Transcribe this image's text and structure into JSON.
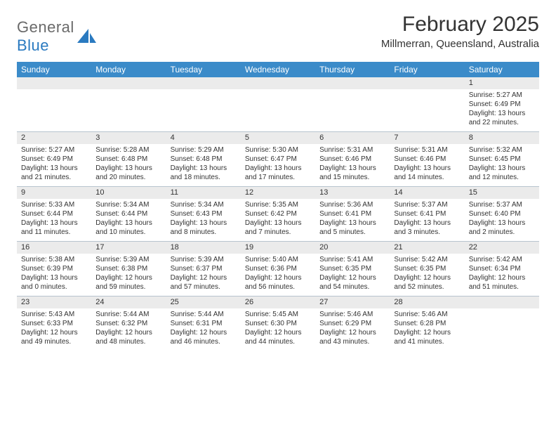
{
  "logo": {
    "word1": "General",
    "word2": "Blue"
  },
  "title": "February 2025",
  "location": "Millmerran, Queensland, Australia",
  "colors": {
    "header_bg": "#3b8bc9",
    "header_text": "#ffffff",
    "daynum_bg": "#ebebeb",
    "grid_line": "#b8c4cf",
    "logo_gray": "#6a6a6a",
    "logo_blue": "#2a7ac0",
    "text": "#333333",
    "background": "#ffffff"
  },
  "typography": {
    "title_fontsize": 30,
    "location_fontsize": 15,
    "dayheader_fontsize": 12,
    "daynum_fontsize": 11,
    "body_fontsize": 10
  },
  "day_names": [
    "Sunday",
    "Monday",
    "Tuesday",
    "Wednesday",
    "Thursday",
    "Friday",
    "Saturday"
  ],
  "weeks": [
    [
      {
        "n": "",
        "sunrise": "",
        "sunset": "",
        "daylight": ""
      },
      {
        "n": "",
        "sunrise": "",
        "sunset": "",
        "daylight": ""
      },
      {
        "n": "",
        "sunrise": "",
        "sunset": "",
        "daylight": ""
      },
      {
        "n": "",
        "sunrise": "",
        "sunset": "",
        "daylight": ""
      },
      {
        "n": "",
        "sunrise": "",
        "sunset": "",
        "daylight": ""
      },
      {
        "n": "",
        "sunrise": "",
        "sunset": "",
        "daylight": ""
      },
      {
        "n": "1",
        "sunrise": "Sunrise: 5:27 AM",
        "sunset": "Sunset: 6:49 PM",
        "daylight": "Daylight: 13 hours and 22 minutes."
      }
    ],
    [
      {
        "n": "2",
        "sunrise": "Sunrise: 5:27 AM",
        "sunset": "Sunset: 6:49 PM",
        "daylight": "Daylight: 13 hours and 21 minutes."
      },
      {
        "n": "3",
        "sunrise": "Sunrise: 5:28 AM",
        "sunset": "Sunset: 6:48 PM",
        "daylight": "Daylight: 13 hours and 20 minutes."
      },
      {
        "n": "4",
        "sunrise": "Sunrise: 5:29 AM",
        "sunset": "Sunset: 6:48 PM",
        "daylight": "Daylight: 13 hours and 18 minutes."
      },
      {
        "n": "5",
        "sunrise": "Sunrise: 5:30 AM",
        "sunset": "Sunset: 6:47 PM",
        "daylight": "Daylight: 13 hours and 17 minutes."
      },
      {
        "n": "6",
        "sunrise": "Sunrise: 5:31 AM",
        "sunset": "Sunset: 6:46 PM",
        "daylight": "Daylight: 13 hours and 15 minutes."
      },
      {
        "n": "7",
        "sunrise": "Sunrise: 5:31 AM",
        "sunset": "Sunset: 6:46 PM",
        "daylight": "Daylight: 13 hours and 14 minutes."
      },
      {
        "n": "8",
        "sunrise": "Sunrise: 5:32 AM",
        "sunset": "Sunset: 6:45 PM",
        "daylight": "Daylight: 13 hours and 12 minutes."
      }
    ],
    [
      {
        "n": "9",
        "sunrise": "Sunrise: 5:33 AM",
        "sunset": "Sunset: 6:44 PM",
        "daylight": "Daylight: 13 hours and 11 minutes."
      },
      {
        "n": "10",
        "sunrise": "Sunrise: 5:34 AM",
        "sunset": "Sunset: 6:44 PM",
        "daylight": "Daylight: 13 hours and 10 minutes."
      },
      {
        "n": "11",
        "sunrise": "Sunrise: 5:34 AM",
        "sunset": "Sunset: 6:43 PM",
        "daylight": "Daylight: 13 hours and 8 minutes."
      },
      {
        "n": "12",
        "sunrise": "Sunrise: 5:35 AM",
        "sunset": "Sunset: 6:42 PM",
        "daylight": "Daylight: 13 hours and 7 minutes."
      },
      {
        "n": "13",
        "sunrise": "Sunrise: 5:36 AM",
        "sunset": "Sunset: 6:41 PM",
        "daylight": "Daylight: 13 hours and 5 minutes."
      },
      {
        "n": "14",
        "sunrise": "Sunrise: 5:37 AM",
        "sunset": "Sunset: 6:41 PM",
        "daylight": "Daylight: 13 hours and 3 minutes."
      },
      {
        "n": "15",
        "sunrise": "Sunrise: 5:37 AM",
        "sunset": "Sunset: 6:40 PM",
        "daylight": "Daylight: 13 hours and 2 minutes."
      }
    ],
    [
      {
        "n": "16",
        "sunrise": "Sunrise: 5:38 AM",
        "sunset": "Sunset: 6:39 PM",
        "daylight": "Daylight: 13 hours and 0 minutes."
      },
      {
        "n": "17",
        "sunrise": "Sunrise: 5:39 AM",
        "sunset": "Sunset: 6:38 PM",
        "daylight": "Daylight: 12 hours and 59 minutes."
      },
      {
        "n": "18",
        "sunrise": "Sunrise: 5:39 AM",
        "sunset": "Sunset: 6:37 PM",
        "daylight": "Daylight: 12 hours and 57 minutes."
      },
      {
        "n": "19",
        "sunrise": "Sunrise: 5:40 AM",
        "sunset": "Sunset: 6:36 PM",
        "daylight": "Daylight: 12 hours and 56 minutes."
      },
      {
        "n": "20",
        "sunrise": "Sunrise: 5:41 AM",
        "sunset": "Sunset: 6:35 PM",
        "daylight": "Daylight: 12 hours and 54 minutes."
      },
      {
        "n": "21",
        "sunrise": "Sunrise: 5:42 AM",
        "sunset": "Sunset: 6:35 PM",
        "daylight": "Daylight: 12 hours and 52 minutes."
      },
      {
        "n": "22",
        "sunrise": "Sunrise: 5:42 AM",
        "sunset": "Sunset: 6:34 PM",
        "daylight": "Daylight: 12 hours and 51 minutes."
      }
    ],
    [
      {
        "n": "23",
        "sunrise": "Sunrise: 5:43 AM",
        "sunset": "Sunset: 6:33 PM",
        "daylight": "Daylight: 12 hours and 49 minutes."
      },
      {
        "n": "24",
        "sunrise": "Sunrise: 5:44 AM",
        "sunset": "Sunset: 6:32 PM",
        "daylight": "Daylight: 12 hours and 48 minutes."
      },
      {
        "n": "25",
        "sunrise": "Sunrise: 5:44 AM",
        "sunset": "Sunset: 6:31 PM",
        "daylight": "Daylight: 12 hours and 46 minutes."
      },
      {
        "n": "26",
        "sunrise": "Sunrise: 5:45 AM",
        "sunset": "Sunset: 6:30 PM",
        "daylight": "Daylight: 12 hours and 44 minutes."
      },
      {
        "n": "27",
        "sunrise": "Sunrise: 5:46 AM",
        "sunset": "Sunset: 6:29 PM",
        "daylight": "Daylight: 12 hours and 43 minutes."
      },
      {
        "n": "28",
        "sunrise": "Sunrise: 5:46 AM",
        "sunset": "Sunset: 6:28 PM",
        "daylight": "Daylight: 12 hours and 41 minutes."
      },
      {
        "n": "",
        "sunrise": "",
        "sunset": "",
        "daylight": ""
      }
    ]
  ]
}
